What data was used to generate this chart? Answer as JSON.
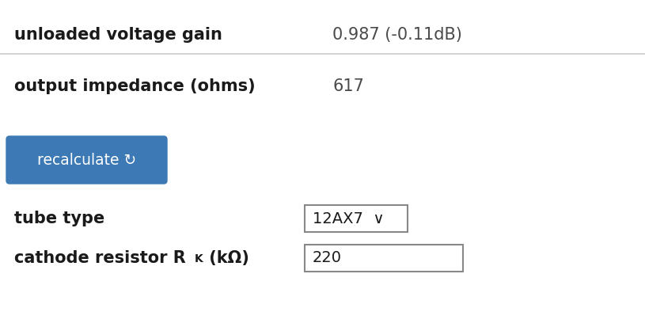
{
  "bg_color": "#ffffff",
  "line1_label": "unloaded voltage gain",
  "line1_value": "0.987 (-0.11dB)",
  "line2_label": "output impedance (ohms)",
  "line2_value": "617",
  "button_text": "recalculate ↻",
  "button_color": "#3d7ab5",
  "button_text_color": "#ffffff",
  "tube_label": "tube type",
  "tube_value": "12AX7  ∨",
  "cathode_label_part1": "cathode resistor R",
  "cathode_label_sub": "K",
  "cathode_label_part2": " (kΩ)",
  "cathode_value": "220",
  "separator_color": "#cccccc",
  "label_color": "#1a1a1a",
  "value_color": "#4a4a4a",
  "label_fontsize": 15,
  "value_fontsize": 15,
  "small_fontsize": 13
}
